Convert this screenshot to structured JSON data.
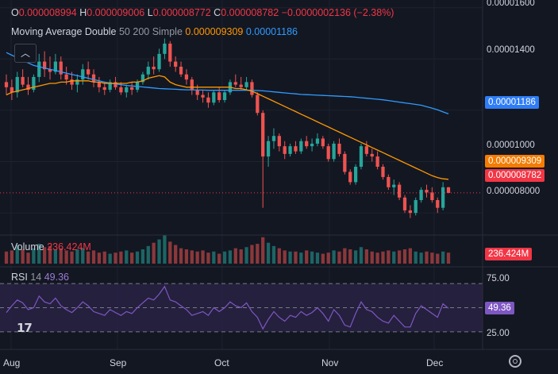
{
  "ohlc_legend": {
    "o_label": "O",
    "o_value": "0.000008994",
    "h_label": "H",
    "h_value": "0.000009006",
    "l_label": "L",
    "l_value": "0.000008772",
    "c_label": "C",
    "c_value": "0.000008782",
    "change": "−0.0000002136 (−2.38%)"
  },
  "ma_legend": {
    "name": "Moving Average Double",
    "params": "50 200 Simple",
    "ma50_value": "0.000009309",
    "ma200_value": "0.00001186"
  },
  "badges": {
    "ma200": "0.00001186",
    "ma50": "0.000009309",
    "last_price": "0.000008782",
    "volume": "236.424M",
    "rsi": "49.36"
  },
  "volume_pane": {
    "label": "Volume",
    "value": "236.424M"
  },
  "rsi_pane": {
    "label": "RSI",
    "length": "14",
    "value": "49.36"
  },
  "price_axis": [
    "0.00001600",
    "0.00001400",
    "0.00001000",
    "0.000008000"
  ],
  "rsi_axis": [
    "75.00",
    "25.00"
  ],
  "time_axis": [
    "Aug",
    "Sep",
    "Oct",
    "Nov",
    "Dec"
  ],
  "colors": {
    "background": "#131722",
    "up": "#26a69a",
    "down": "#ef5350",
    "ma50": "#ff9800",
    "ma200": "#2f9bff",
    "rsi": "#7e57c2",
    "rsi_band": "#2a2346",
    "last_price": "#f23645"
  },
  "icons": [
    "chevron-up-icon",
    "tradingview-logo-icon",
    "gear-icon"
  ],
  "chart_data": {
    "type": "candlestick",
    "price_ylim": [
      7.2e-06,
      1.63e-05
    ],
    "ma50_last": 9.309e-06,
    "ma200_last": 1.186e-05,
    "last_price": 8.782e-06,
    "rsi_ylim": [
      15,
      85
    ],
    "rsi_levels": [
      75,
      50,
      25
    ],
    "rsi_last": 49.36,
    "volume_last": 236424000,
    "candles": [
      [
        13.1,
        13.4,
        12.6,
        12.9
      ],
      [
        12.9,
        13.2,
        12.4,
        12.7
      ],
      [
        12.7,
        13.5,
        12.5,
        13.3
      ],
      [
        13.3,
        13.6,
        12.9,
        13.0
      ],
      [
        13.0,
        13.3,
        12.6,
        12.8
      ],
      [
        12.8,
        13.4,
        12.7,
        13.3
      ],
      [
        13.3,
        14.2,
        13.1,
        13.9
      ],
      [
        13.9,
        14.3,
        13.3,
        13.6
      ],
      [
        13.6,
        14.1,
        13.2,
        13.5
      ],
      [
        13.5,
        14.2,
        13.4,
        13.9
      ],
      [
        13.9,
        14.1,
        13.2,
        13.4
      ],
      [
        13.4,
        13.7,
        13.0,
        13.2
      ],
      [
        13.2,
        13.5,
        12.8,
        13.0
      ],
      [
        13.0,
        13.4,
        12.7,
        13.2
      ],
      [
        13.2,
        13.8,
        13.0,
        13.6
      ],
      [
        13.6,
        13.9,
        13.2,
        13.4
      ],
      [
        13.4,
        13.6,
        12.9,
        13.1
      ],
      [
        13.1,
        13.3,
        12.7,
        12.9
      ],
      [
        12.9,
        13.1,
        12.6,
        12.8
      ],
      [
        12.8,
        13.2,
        12.7,
        13.1
      ],
      [
        13.1,
        13.3,
        12.8,
        12.9
      ],
      [
        12.9,
        13.1,
        12.6,
        12.7
      ],
      [
        12.7,
        13.0,
        12.5,
        12.9
      ],
      [
        12.9,
        13.1,
        12.6,
        12.8
      ],
      [
        12.8,
        13.2,
        12.7,
        13.1
      ],
      [
        13.1,
        13.5,
        13.0,
        13.4
      ],
      [
        13.4,
        13.9,
        13.2,
        13.7
      ],
      [
        13.7,
        14.1,
        13.4,
        13.6
      ],
      [
        13.6,
        14.4,
        13.5,
        14.2
      ],
      [
        14.2,
        14.8,
        14.0,
        14.6
      ],
      [
        14.6,
        14.7,
        13.7,
        13.9
      ],
      [
        13.9,
        14.1,
        13.5,
        13.7
      ],
      [
        13.7,
        13.9,
        13.3,
        13.4
      ],
      [
        13.4,
        13.6,
        13.0,
        13.2
      ],
      [
        13.2,
        13.3,
        12.6,
        12.8
      ],
      [
        12.8,
        13.0,
        12.4,
        12.6
      ],
      [
        12.6,
        12.8,
        12.3,
        12.5
      ],
      [
        12.5,
        12.7,
        12.1,
        12.3
      ],
      [
        12.3,
        12.8,
        12.2,
        12.7
      ],
      [
        12.7,
        12.9,
        12.3,
        12.4
      ],
      [
        12.4,
        12.8,
        12.3,
        12.7
      ],
      [
        12.7,
        13.2,
        12.6,
        13.1
      ],
      [
        13.1,
        13.4,
        12.9,
        13.0
      ],
      [
        13.0,
        13.3,
        12.8,
        12.9
      ],
      [
        12.9,
        13.3,
        12.8,
        13.1
      ],
      [
        13.1,
        13.2,
        12.5,
        12.6
      ],
      [
        12.6,
        12.7,
        11.8,
        11.9
      ],
      [
        11.9,
        12.0,
        8.2,
        10.2
      ],
      [
        10.2,
        11.0,
        9.8,
        10.8
      ],
      [
        10.8,
        11.3,
        10.5,
        11.0
      ],
      [
        11.0,
        11.1,
        10.4,
        10.6
      ],
      [
        10.6,
        10.8,
        10.1,
        10.3
      ],
      [
        10.3,
        10.7,
        10.2,
        10.6
      ],
      [
        10.6,
        10.8,
        10.3,
        10.4
      ],
      [
        10.4,
        10.9,
        10.3,
        10.8
      ],
      [
        10.8,
        11.0,
        10.5,
        10.6
      ],
      [
        10.6,
        10.9,
        10.4,
        10.7
      ],
      [
        10.7,
        11.1,
        10.6,
        10.9
      ],
      [
        10.9,
        11.0,
        10.5,
        10.6
      ],
      [
        10.6,
        10.7,
        10.0,
        10.1
      ],
      [
        10.1,
        10.8,
        10.0,
        10.7
      ],
      [
        10.7,
        10.9,
        10.2,
        10.3
      ],
      [
        10.3,
        10.4,
        9.5,
        9.6
      ],
      [
        9.6,
        9.7,
        9.1,
        9.2
      ],
      [
        9.2,
        9.9,
        9.1,
        9.8
      ],
      [
        9.8,
        10.7,
        9.7,
        10.6
      ],
      [
        10.6,
        10.8,
        10.2,
        10.3
      ],
      [
        10.3,
        10.5,
        10.0,
        10.2
      ],
      [
        10.2,
        10.4,
        9.7,
        9.8
      ],
      [
        9.8,
        9.9,
        9.3,
        9.4
      ],
      [
        9.4,
        9.5,
        8.9,
        9.0
      ],
      [
        9.0,
        9.3,
        8.7,
        9.1
      ],
      [
        9.1,
        9.2,
        8.5,
        8.6
      ],
      [
        8.6,
        8.7,
        8.0,
        8.1
      ],
      [
        8.1,
        8.3,
        7.8,
        8.0
      ],
      [
        8.0,
        8.6,
        7.9,
        8.5
      ],
      [
        8.5,
        9.0,
        8.4,
        8.9
      ],
      [
        8.9,
        9.1,
        8.6,
        8.8
      ],
      [
        8.8,
        9.0,
        8.4,
        8.5
      ],
      [
        8.5,
        8.6,
        8.0,
        8.2
      ],
      [
        8.2,
        9.2,
        8.1,
        9.0
      ],
      [
        9.0,
        9.01,
        8.77,
        8.78
      ]
    ],
    "ma50": [
      12.6,
      12.7,
      12.75,
      12.8,
      12.85,
      12.9,
      12.95,
      13.0,
      13.05,
      13.05,
      13.1,
      13.1,
      13.15,
      13.15,
      13.15,
      13.15,
      13.1,
      13.1,
      13.05,
      13.05,
      13.05,
      13.05,
      13.05,
      13.1,
      13.1,
      13.15,
      13.25,
      13.3,
      13.35,
      13.3,
      13.1,
      13.0,
      12.95,
      12.9,
      12.9,
      12.9,
      12.9,
      12.9,
      12.9,
      12.9,
      12.9,
      12.9,
      12.85,
      12.85,
      12.8,
      12.75,
      12.65,
      12.55,
      12.45,
      12.35,
      12.25,
      12.15,
      12.05,
      11.95,
      11.85,
      11.75,
      11.65,
      11.55,
      11.45,
      11.35,
      11.25,
      11.15,
      11.05,
      10.95,
      10.85,
      10.75,
      10.65,
      10.55,
      10.45,
      10.35,
      10.25,
      10.15,
      10.05,
      9.95,
      9.85,
      9.75,
      9.65,
      9.55,
      9.45,
      9.38,
      9.33,
      9.31
    ],
    "ma200": [
      14.25,
      14.15,
      14.05,
      13.95,
      13.85,
      13.75,
      13.7,
      13.65,
      13.6,
      13.55,
      13.5,
      13.45,
      13.4,
      13.35,
      13.3,
      13.25,
      13.2,
      13.15,
      13.1,
      13.06,
      13.03,
      13.0,
      12.97,
      12.95,
      12.93,
      12.91,
      12.89,
      12.87,
      12.85,
      12.84,
      12.83,
      12.82,
      12.81,
      12.8,
      12.8,
      12.79,
      12.79,
      12.78,
      12.78,
      12.78,
      12.78,
      12.78,
      12.78,
      12.78,
      12.78,
      12.78,
      12.77,
      12.76,
      12.74,
      12.72,
      12.7,
      12.68,
      12.66,
      12.64,
      12.62,
      12.61,
      12.6,
      12.59,
      12.58,
      12.57,
      12.56,
      12.55,
      12.54,
      12.53,
      12.51,
      12.49,
      12.47,
      12.45,
      12.43,
      12.41,
      12.38,
      12.35,
      12.32,
      12.29,
      12.26,
      12.23,
      12.2,
      12.14,
      12.08,
      12.02,
      11.94,
      11.86
    ],
    "volume": [
      0.55,
      0.6,
      0.85,
      0.65,
      0.5,
      0.7,
      0.9,
      0.75,
      0.8,
      0.65,
      0.7,
      0.6,
      0.55,
      0.65,
      0.7,
      0.55,
      0.6,
      0.5,
      0.55,
      0.45,
      0.5,
      0.55,
      0.6,
      0.5,
      0.55,
      0.65,
      0.8,
      0.95,
      1.1,
      1.3,
      1.0,
      0.85,
      0.7,
      0.65,
      0.6,
      0.55,
      0.6,
      0.5,
      0.55,
      0.45,
      0.55,
      0.6,
      0.7,
      0.65,
      0.75,
      0.85,
      0.9,
      1.2,
      0.95,
      0.8,
      0.7,
      0.6,
      0.55,
      0.55,
      0.5,
      0.6,
      0.55,
      0.5,
      0.45,
      0.5,
      0.6,
      0.55,
      0.7,
      0.65,
      0.6,
      0.75,
      0.65,
      0.55,
      0.5,
      0.55,
      0.6,
      0.55,
      0.6,
      0.65,
      0.7,
      0.55,
      0.5,
      0.55,
      0.5,
      0.45,
      0.55,
      0.5
    ],
    "rsi": [
      45,
      52,
      58,
      55,
      48,
      50,
      62,
      56,
      54,
      60,
      52,
      48,
      45,
      50,
      56,
      52,
      46,
      44,
      42,
      48,
      45,
      42,
      46,
      44,
      50,
      55,
      60,
      58,
      64,
      72,
      58,
      56,
      52,
      48,
      42,
      44,
      46,
      42,
      50,
      46,
      50,
      56,
      52,
      50,
      55,
      46,
      40,
      28,
      38,
      46,
      40,
      36,
      42,
      40,
      46,
      42,
      45,
      50,
      44,
      36,
      48,
      42,
      32,
      30,
      44,
      56,
      48,
      46,
      40,
      36,
      34,
      42,
      36,
      30,
      30,
      44,
      52,
      48,
      44,
      40,
      54,
      49.36
    ]
  }
}
